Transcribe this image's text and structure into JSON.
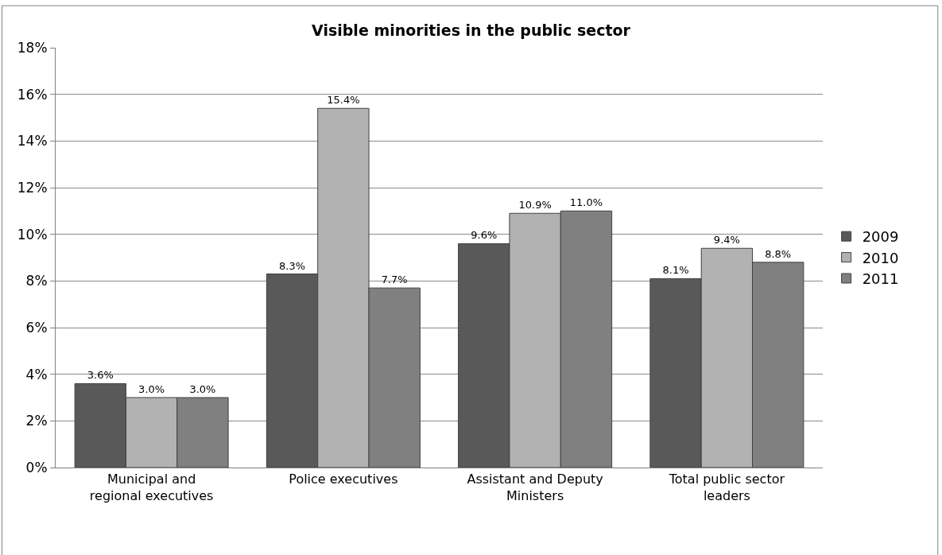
{
  "chart_data": {
    "type": "bar",
    "title": "Visible minorities in the public sector",
    "categories": [
      "Municipal and regional executives",
      "Police executives",
      "Assistant and Deputy Ministers",
      "Total public sector leaders"
    ],
    "series": [
      {
        "name": "2009",
        "color": "#595959",
        "values": [
          3.6,
          8.3,
          9.6,
          8.1
        ],
        "value_labels": [
          "3.6%",
          "8.3%",
          "9.6%",
          "8.1%"
        ]
      },
      {
        "name": "2010",
        "color": "#b2b2b2",
        "values": [
          3.0,
          15.4,
          10.9,
          9.4
        ],
        "value_labels": [
          "3.0%",
          "15.4%",
          "10.9%",
          "9.4%"
        ]
      },
      {
        "name": "2011",
        "color": "#808080",
        "values": [
          3.0,
          7.7,
          11.0,
          8.8
        ],
        "value_labels": [
          "3.0%",
          "7.7%",
          "11.0%",
          "8.8%"
        ]
      }
    ],
    "ylim": [
      0,
      18
    ],
    "yticks": [
      {
        "value": 0,
        "label": "0%"
      },
      {
        "value": 2,
        "label": "2%"
      },
      {
        "value": 4,
        "label": "4%"
      },
      {
        "value": 6,
        "label": "6%"
      },
      {
        "value": 8,
        "label": "8%"
      },
      {
        "value": 10,
        "label": "10%"
      },
      {
        "value": 12,
        "label": "12%"
      },
      {
        "value": 14,
        "label": "14%"
      },
      {
        "value": 16,
        "label": "16%"
      },
      {
        "value": 18,
        "label": "18%"
      }
    ],
    "grid": "y",
    "legend": "right"
  }
}
